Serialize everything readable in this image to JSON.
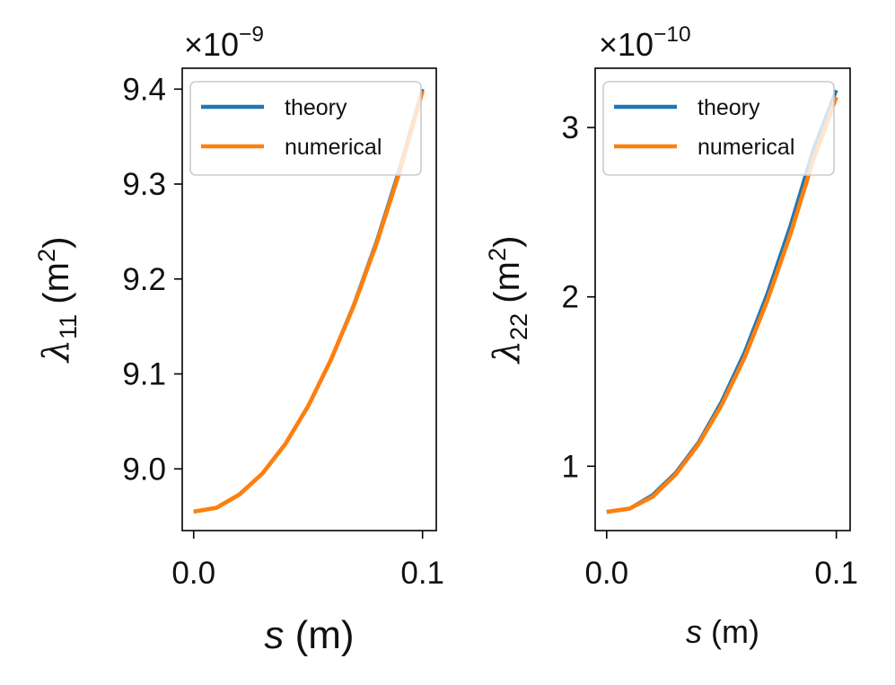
{
  "chart_data": [
    {
      "type": "line",
      "multiplier": {
        "base": "×10",
        "exp": "−9"
      },
      "xlabel": {
        "var": "s",
        "unit": " (m)"
      },
      "ylabel": {
        "sym": "λ",
        "sub": "11",
        "unit_open": " (m",
        "sup": "2",
        "unit_close": ")"
      },
      "xlim": [
        -0.005,
        0.106
      ],
      "ylim": [
        8.935,
        9.422
      ],
      "xticks": [
        0.0,
        0.1
      ],
      "xtick_labels": [
        "0.0",
        "0.1"
      ],
      "yticks": [
        9.0,
        9.1,
        9.2,
        9.3,
        9.4
      ],
      "ytick_labels": [
        "9.0",
        "9.1",
        "9.2",
        "9.3",
        "9.4"
      ],
      "legend": {
        "position": "top-left",
        "entries": [
          "theory",
          "numerical"
        ]
      },
      "series": [
        {
          "name": "theory",
          "color": "#1f77b4",
          "x": [
            0.0,
            0.01,
            0.02,
            0.03,
            0.04,
            0.05,
            0.06,
            0.07,
            0.08,
            0.09,
            0.1
          ],
          "y": [
            8.955,
            8.959,
            8.973,
            8.995,
            9.026,
            9.066,
            9.115,
            9.173,
            9.24,
            9.316,
            9.4
          ]
        },
        {
          "name": "numerical",
          "color": "#ff7f0e",
          "x": [
            0.0,
            0.01,
            0.02,
            0.03,
            0.04,
            0.05,
            0.06,
            0.07,
            0.08,
            0.09,
            0.1
          ],
          "y": [
            8.955,
            8.959,
            8.973,
            8.995,
            9.026,
            9.066,
            9.115,
            9.172,
            9.238,
            9.313,
            9.398
          ]
        }
      ]
    },
    {
      "type": "line",
      "multiplier": {
        "base": "×10",
        "exp": "−10"
      },
      "xlabel": {
        "var": "s",
        "unit": " (m)"
      },
      "ylabel": {
        "sym": "λ",
        "sub": "22",
        "unit_open": " (m",
        "sup": "2",
        "unit_close": ")"
      },
      "xlim": [
        -0.005,
        0.106
      ],
      "ylim": [
        0.62,
        3.35
      ],
      "xticks": [
        0.0,
        0.1
      ],
      "xtick_labels": [
        "0.0",
        "0.1"
      ],
      "yticks": [
        1,
        2,
        3
      ],
      "ytick_labels": [
        "1",
        "2",
        "3"
      ],
      "legend": {
        "position": "top-left",
        "entries": [
          "theory",
          "numerical"
        ]
      },
      "series": [
        {
          "name": "theory",
          "color": "#1f77b4",
          "x": [
            0.0,
            0.01,
            0.02,
            0.03,
            0.04,
            0.05,
            0.06,
            0.07,
            0.08,
            0.09,
            0.1
          ],
          "y": [
            0.73,
            0.75,
            0.83,
            0.96,
            1.14,
            1.38,
            1.67,
            2.02,
            2.42,
            2.87,
            3.22
          ]
        },
        {
          "name": "numerical",
          "color": "#ff7f0e",
          "x": [
            0.0,
            0.01,
            0.02,
            0.03,
            0.04,
            0.05,
            0.06,
            0.07,
            0.08,
            0.09,
            0.1
          ],
          "y": [
            0.73,
            0.75,
            0.82,
            0.95,
            1.13,
            1.36,
            1.64,
            1.98,
            2.37,
            2.81,
            3.18
          ]
        }
      ]
    }
  ]
}
